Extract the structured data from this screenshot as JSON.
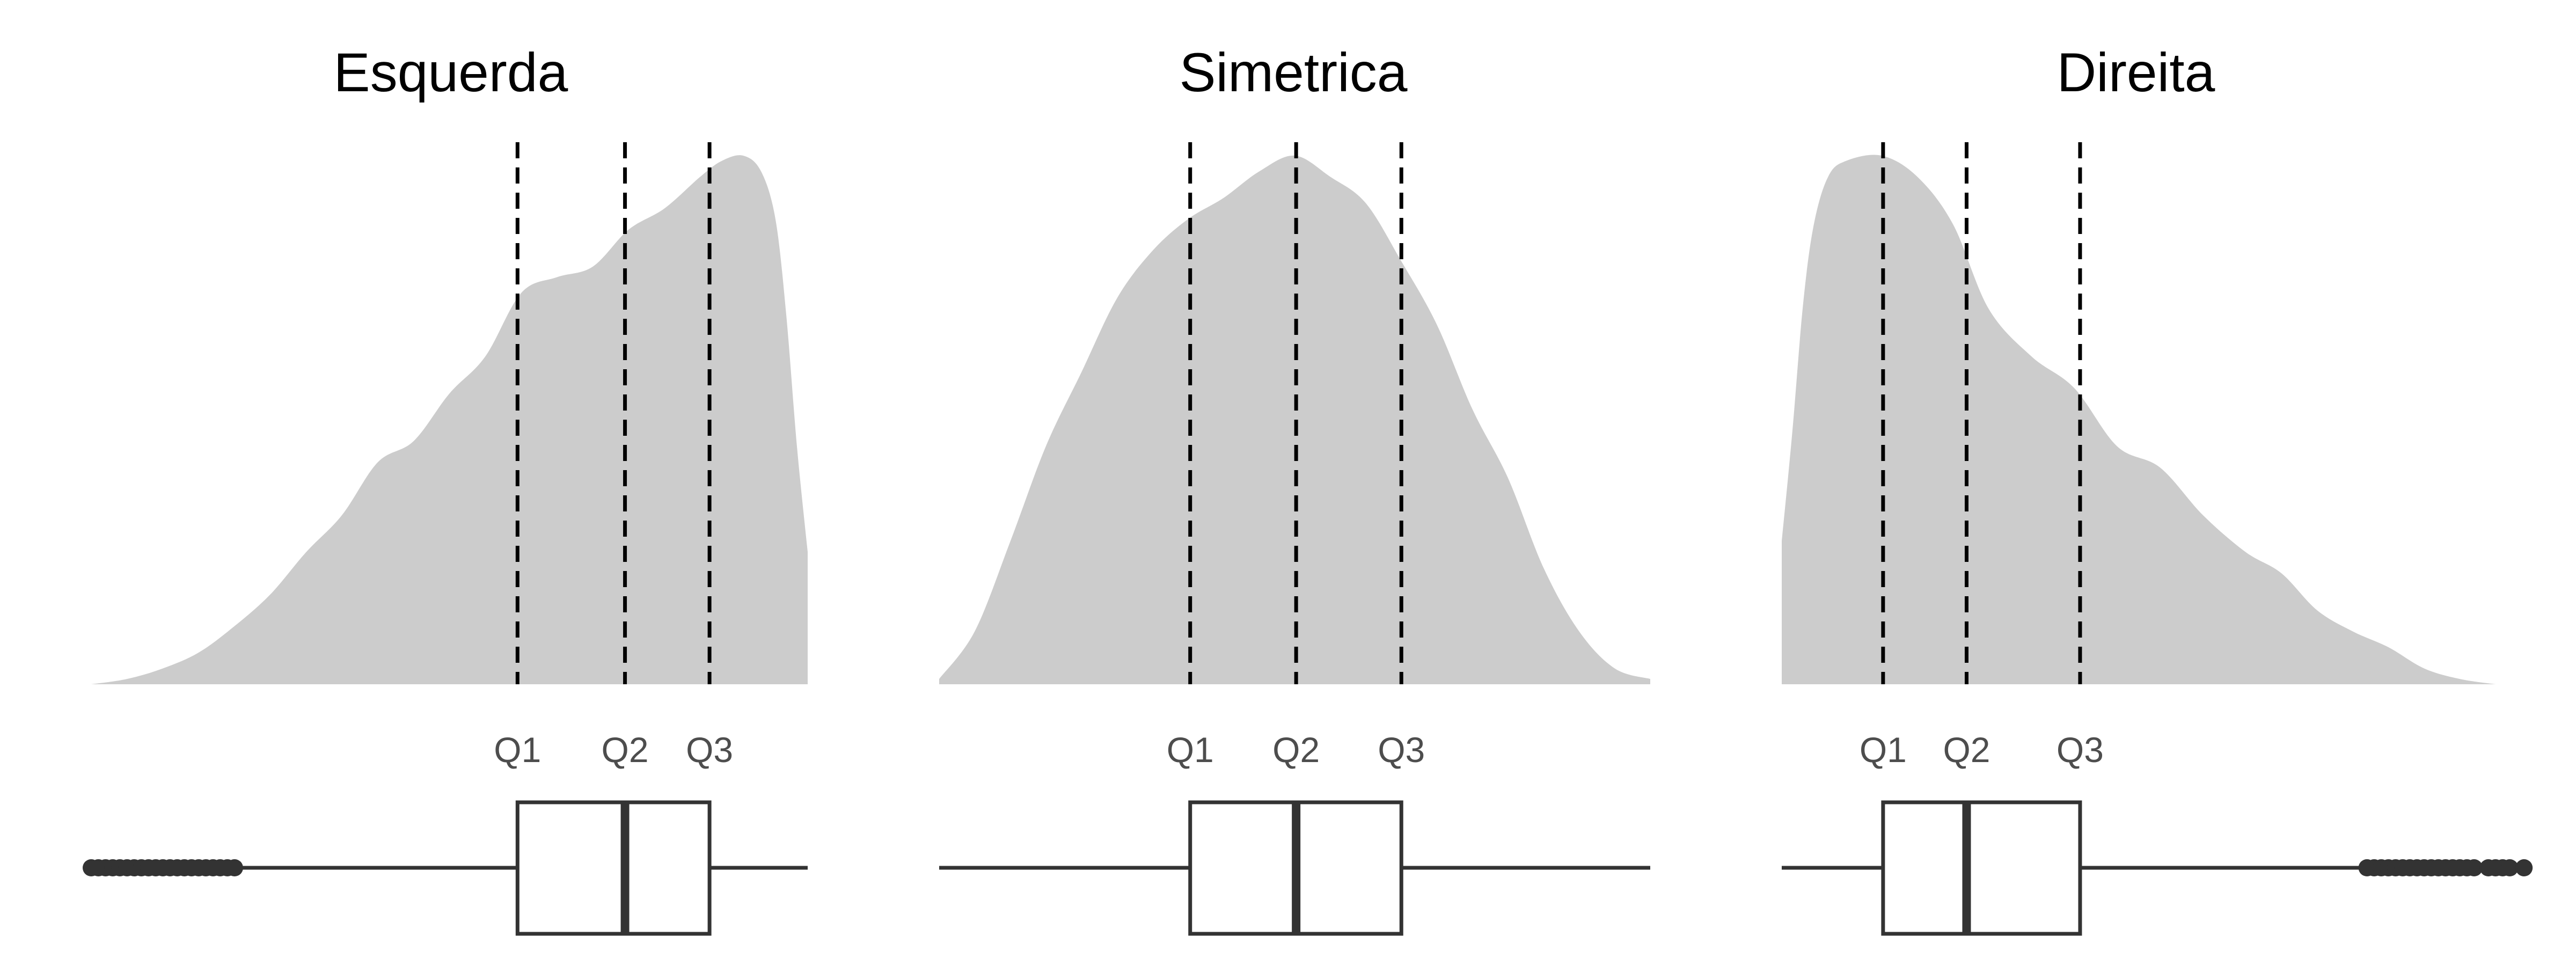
{
  "chart_data": [
    {
      "type": "area",
      "title": "Esquerda",
      "xlabel": "",
      "ylabel": "",
      "grid": false,
      "xlim": [
        0,
        1
      ],
      "ylim": [
        0,
        1
      ],
      "fill_color": "#cccccc",
      "x": [
        0.0,
        0.05,
        0.1,
        0.15,
        0.2,
        0.25,
        0.3,
        0.35,
        0.4,
        0.45,
        0.5,
        0.55,
        0.6,
        0.65,
        0.7,
        0.75,
        0.8,
        0.85,
        0.88,
        0.91,
        0.935,
        0.955,
        0.97,
        0.985,
        1.0
      ],
      "density": [
        0.0,
        0.01,
        0.03,
        0.06,
        0.11,
        0.17,
        0.25,
        0.32,
        0.42,
        0.46,
        0.55,
        0.62,
        0.74,
        0.77,
        0.79,
        0.86,
        0.9,
        0.96,
        0.99,
        1.0,
        0.97,
        0.88,
        0.7,
        0.45,
        0.25
      ],
      "quartiles": [
        {
          "label": "Q1",
          "value": 0.595
        },
        {
          "label": "Q2",
          "value": 0.745
        },
        {
          "label": "Q3",
          "value": 0.863
        }
      ],
      "boxplot": {
        "whisker_low": 0.21,
        "q1": 0.595,
        "median": 0.745,
        "q3": 0.863,
        "whisker_high": 1.0,
        "outliers": [
          0.0,
          0.01,
          0.02,
          0.03,
          0.04,
          0.05,
          0.06,
          0.07,
          0.08,
          0.09,
          0.1,
          0.11,
          0.12,
          0.13,
          0.14,
          0.15,
          0.16,
          0.17,
          0.18,
          0.19,
          0.2
        ]
      }
    },
    {
      "type": "area",
      "title": "Simetrica",
      "xlabel": "",
      "ylabel": "",
      "grid": false,
      "xlim": [
        0,
        1
      ],
      "ylim": [
        0,
        1
      ],
      "fill_color": "#cccccc",
      "x": [
        0.0,
        0.05,
        0.1,
        0.15,
        0.2,
        0.25,
        0.3,
        0.35,
        0.4,
        0.45,
        0.5,
        0.55,
        0.6,
        0.65,
        0.7,
        0.75,
        0.8,
        0.85,
        0.9,
        0.95,
        1.0
      ],
      "density": [
        0.01,
        0.1,
        0.27,
        0.45,
        0.59,
        0.73,
        0.82,
        0.88,
        0.92,
        0.97,
        1.0,
        0.96,
        0.91,
        0.8,
        0.68,
        0.52,
        0.39,
        0.22,
        0.1,
        0.03,
        0.01
      ],
      "quartiles": [
        {
          "label": "Q1",
          "value": 0.353
        },
        {
          "label": "Q2",
          "value": 0.502
        },
        {
          "label": "Q3",
          "value": 0.65
        }
      ],
      "boxplot": {
        "whisker_low": 0.0,
        "q1": 0.353,
        "median": 0.502,
        "q3": 0.65,
        "whisker_high": 1.0,
        "outliers": []
      }
    },
    {
      "type": "area",
      "title": "Direita",
      "xlabel": "",
      "ylabel": "",
      "grid": false,
      "xlim": [
        0,
        1
      ],
      "ylim": [
        0,
        1
      ],
      "fill_color": "#cccccc",
      "x": [
        0.0,
        0.015,
        0.03,
        0.045,
        0.065,
        0.09,
        0.14,
        0.19,
        0.24,
        0.29,
        0.35,
        0.41,
        0.47,
        0.53,
        0.59,
        0.65,
        0.7,
        0.75,
        0.8,
        0.85,
        0.9,
        0.95,
        1.0
      ],
      "density": [
        0.27,
        0.48,
        0.72,
        0.87,
        0.96,
        0.99,
        1.0,
        0.96,
        0.87,
        0.71,
        0.62,
        0.56,
        0.45,
        0.41,
        0.32,
        0.25,
        0.21,
        0.14,
        0.1,
        0.07,
        0.03,
        0.01,
        0.0
      ],
      "quartiles": [
        {
          "label": "Q1",
          "value": 0.142
        },
        {
          "label": "Q2",
          "value": 0.259
        },
        {
          "label": "Q3",
          "value": 0.418
        }
      ],
      "boxplot": {
        "whisker_low": 0.0,
        "q1": 0.142,
        "median": 0.259,
        "q3": 0.418,
        "whisker_high": 0.82,
        "outliers": [
          0.82,
          0.83,
          0.84,
          0.85,
          0.86,
          0.87,
          0.88,
          0.89,
          0.9,
          0.91,
          0.92,
          0.93,
          0.94,
          0.95,
          0.96,
          0.97,
          0.99,
          1.0,
          1.01,
          1.02,
          1.04
        ]
      }
    }
  ]
}
